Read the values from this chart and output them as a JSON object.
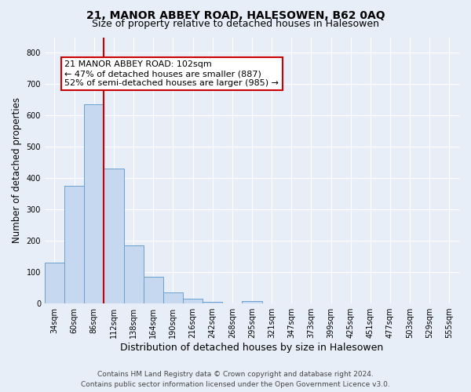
{
  "title": "21, MANOR ABBEY ROAD, HALESOWEN, B62 0AQ",
  "subtitle": "Size of property relative to detached houses in Halesowen",
  "xlabel": "Distribution of detached houses by size in Halesowen",
  "ylabel": "Number of detached properties",
  "bar_labels": [
    "34sqm",
    "60sqm",
    "86sqm",
    "112sqm",
    "138sqm",
    "164sqm",
    "190sqm",
    "216sqm",
    "242sqm",
    "268sqm",
    "295sqm",
    "321sqm",
    "347sqm",
    "373sqm",
    "399sqm",
    "425sqm",
    "451sqm",
    "477sqm",
    "503sqm",
    "529sqm",
    "555sqm"
  ],
  "bar_values": [
    130,
    375,
    635,
    430,
    185,
    85,
    35,
    15,
    5,
    0,
    8,
    0,
    0,
    0,
    0,
    0,
    0,
    0,
    0,
    0,
    0
  ],
  "bar_color": "#c5d8f0",
  "bar_edge_color": "#6aa0d0",
  "vline_x": 2.5,
  "vline_color": "#cc0000",
  "annotation_text": "21 MANOR ABBEY ROAD: 102sqm\n← 47% of detached houses are smaller (887)\n52% of semi-detached houses are larger (985) →",
  "annotation_box_color": "#ffffff",
  "annotation_box_edge": "#cc0000",
  "ylim": [
    0,
    850
  ],
  "yticks": [
    0,
    100,
    200,
    300,
    400,
    500,
    600,
    700,
    800
  ],
  "footer_line1": "Contains HM Land Registry data © Crown copyright and database right 2024.",
  "footer_line2": "Contains public sector information licensed under the Open Government Licence v3.0.",
  "bg_color": "#e8eef8",
  "plot_bg_color": "#e8eef8",
  "grid_color": "#ffffff",
  "title_fontsize": 10,
  "subtitle_fontsize": 9,
  "xlabel_fontsize": 9,
  "ylabel_fontsize": 8.5,
  "tick_fontsize": 7,
  "footer_fontsize": 6.5,
  "annot_fontsize": 8
}
